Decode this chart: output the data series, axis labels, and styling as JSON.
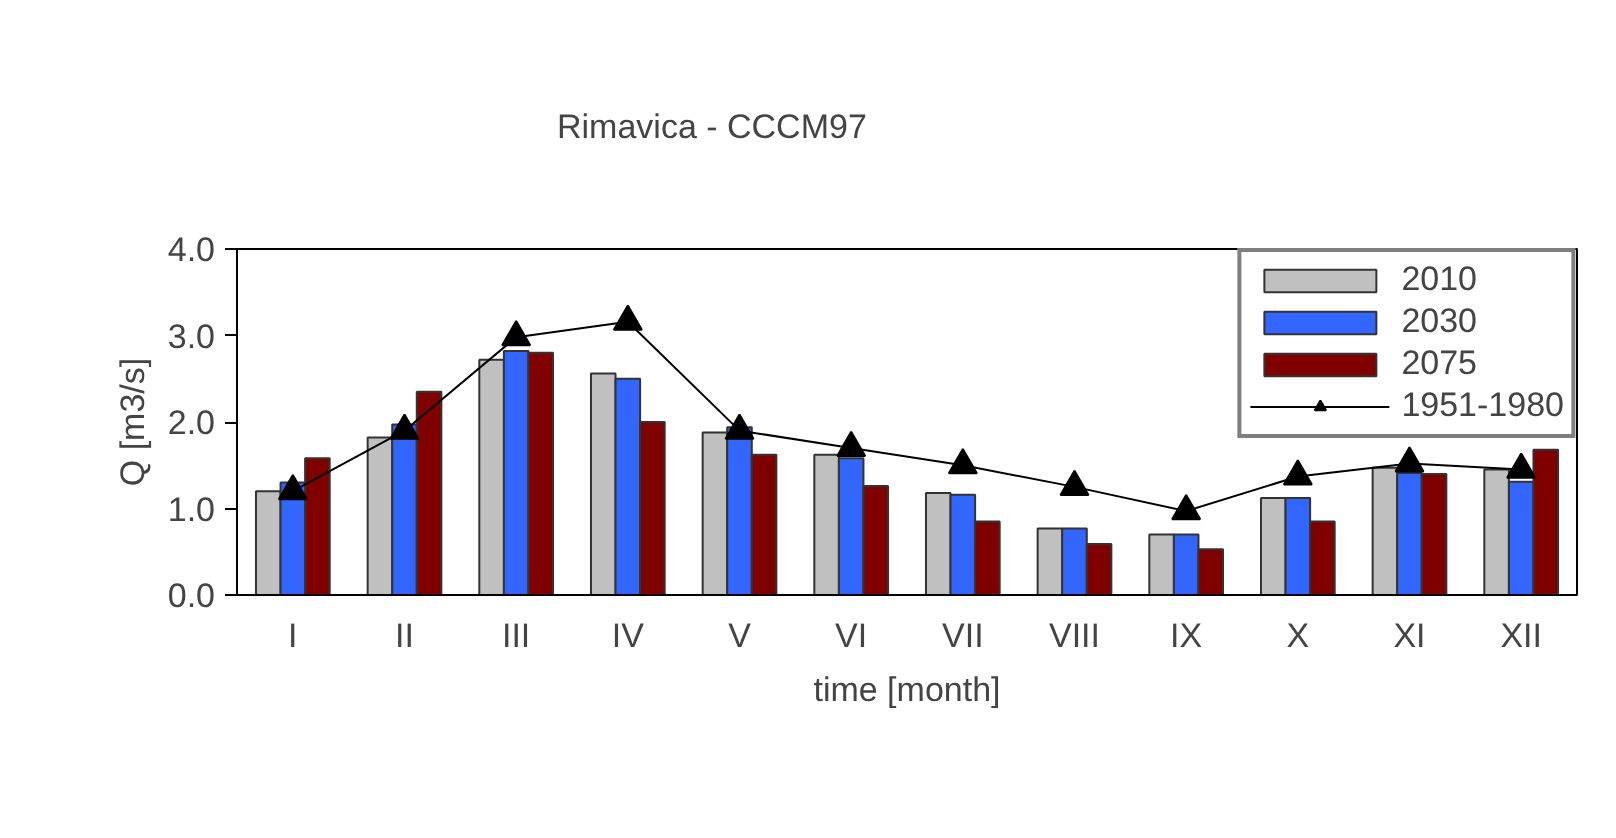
{
  "chart_data": {
    "type": "bar",
    "title": "Rimavica - CCCM97",
    "xlabel": "time [month]",
    "ylabel": "Q [m3/s]",
    "categories": [
      "I",
      "II",
      "III",
      "IV",
      "V",
      "VI",
      "VII",
      "VIII",
      "IX",
      "X",
      "XI",
      "XII"
    ],
    "series": [
      {
        "name": "2010",
        "color": "#c0c0c0",
        "values": [
          1.2,
          1.82,
          2.72,
          2.56,
          1.88,
          1.62,
          1.18,
          0.77,
          0.7,
          1.12,
          1.47,
          1.45
        ]
      },
      {
        "name": "2030",
        "color": "#3366ff",
        "values": [
          1.3,
          1.97,
          2.82,
          2.5,
          1.94,
          1.58,
          1.16,
          0.77,
          0.7,
          1.12,
          1.41,
          1.31
        ]
      },
      {
        "name": "2075",
        "color": "#800000",
        "values": [
          1.58,
          2.35,
          2.8,
          2.0,
          1.62,
          1.26,
          0.85,
          0.59,
          0.53,
          0.85,
          1.4,
          1.68
        ]
      },
      {
        "name": "1951-1980",
        "type": "line",
        "color": "#000000",
        "marker": "triangle",
        "values": [
          1.2,
          1.9,
          2.98,
          3.16,
          1.9,
          1.7,
          1.5,
          1.25,
          0.97,
          1.37,
          1.52,
          1.45
        ]
      }
    ],
    "ylim": [
      0,
      4
    ],
    "yticks": [
      {
        "value": 0,
        "label": "0.0"
      },
      {
        "value": 1,
        "label": "1.0"
      },
      {
        "value": 2,
        "label": "2.0"
      },
      {
        "value": 3,
        "label": "3.0"
      },
      {
        "value": 4,
        "label": "4.0"
      }
    ],
    "grid": false,
    "legend": "top right"
  }
}
